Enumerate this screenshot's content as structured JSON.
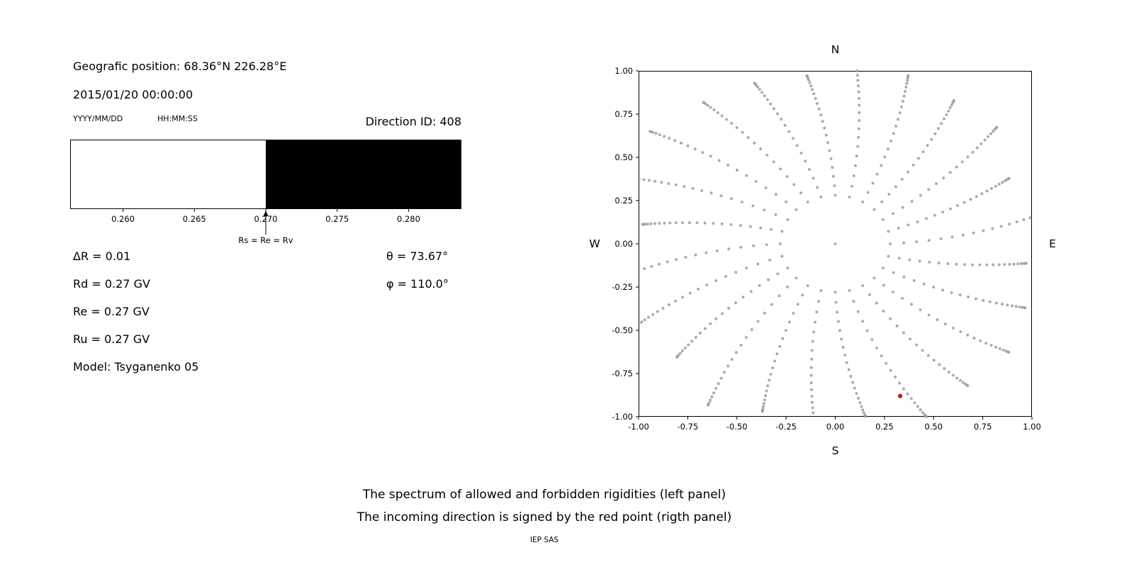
{
  "left_panel": {
    "geo_position": "Geografic position: 68.36°N 226.28°E",
    "datetime": "2015/01/20 00:00:00",
    "date_format_label": "YYYY/MM/DD",
    "time_format_label": "HH:MM:SS",
    "direction_id": "Direction ID: 408",
    "delta_r": "ΔR = 0.01",
    "theta": "θ = 73.67°",
    "rd": "Rd = 0.27 GV",
    "phi": "φ = 110.0°",
    "re": "Re = 0.27 GV",
    "ru": "Ru = 0.27 GV",
    "model": "Model: Tsyganenko 05"
  },
  "footer": {
    "caption_line1": "The spectrum of allowed and forbidden rigidities (left panel)",
    "caption_line2": "The incoming direction is signed by the red point (rigth panel)",
    "credit": "IEP SAS"
  },
  "chart_data": [
    {
      "type": "bar",
      "name": "rigidity-spectrum",
      "x_range": [
        0.2563,
        0.2837
      ],
      "xticks": [
        "0.260",
        "0.265",
        "0.270",
        "0.275",
        "0.280"
      ],
      "xtick_values": [
        0.26,
        0.265,
        0.27,
        0.275,
        0.28
      ],
      "regions": [
        {
          "label": "allowed",
          "from": 0.2563,
          "to": 0.27,
          "color": "#ffffff"
        },
        {
          "label": "forbidden",
          "from": 0.27,
          "to": 0.2837,
          "color": "#000000"
        }
      ],
      "marker": {
        "value": 0.27,
        "label": "Rs = Re = Rv"
      },
      "values": {
        "delta_r": 0.01,
        "rd_gv": 0.27,
        "re_gv": 0.27,
        "ru_gv": 0.27,
        "theta_deg": 73.67,
        "phi_deg": 110.0,
        "model": "Tsyganenko 05",
        "direction_id": 408,
        "latitude_deg_n": 68.36,
        "longitude_deg_e": 226.28,
        "datetime": "2015/01/20 00:00:00"
      }
    },
    {
      "type": "scatter",
      "name": "incoming-direction",
      "xlim": [
        -1,
        1
      ],
      "ylim": [
        -1,
        1
      ],
      "xticks": [
        "-1.00",
        "-0.75",
        "-0.50",
        "-0.25",
        "0.00",
        "0.25",
        "0.50",
        "0.75",
        "1.00"
      ],
      "xtick_values": [
        -1,
        -0.75,
        -0.5,
        -0.25,
        0,
        0.25,
        0.5,
        0.75,
        1
      ],
      "yticks": [
        "1.00",
        "0.75",
        "0.50",
        "0.25",
        "0.00",
        "-0.25",
        "-0.50",
        "-0.75",
        "-1.00"
      ],
      "ytick_values": [
        1,
        0.75,
        0.5,
        0.25,
        0,
        -0.25,
        -0.5,
        -0.75,
        -1
      ],
      "compass": {
        "top": "N",
        "bottom": "S",
        "left": "W",
        "right": "E"
      },
      "dot_color": "#9c9c9c",
      "dot_opacity": 0.85,
      "spokes": {
        "count": 24,
        "angle_step_deg": 15,
        "r_start": 0.28,
        "r_end_min": 0.95,
        "r_end_max": 1.15,
        "points_per_spoke": 22,
        "twist_deg": 12
      },
      "center_dot": [
        0,
        0
      ],
      "red_point": {
        "x": 0.33,
        "y": -0.88,
        "color": "#dd0000"
      }
    }
  ]
}
